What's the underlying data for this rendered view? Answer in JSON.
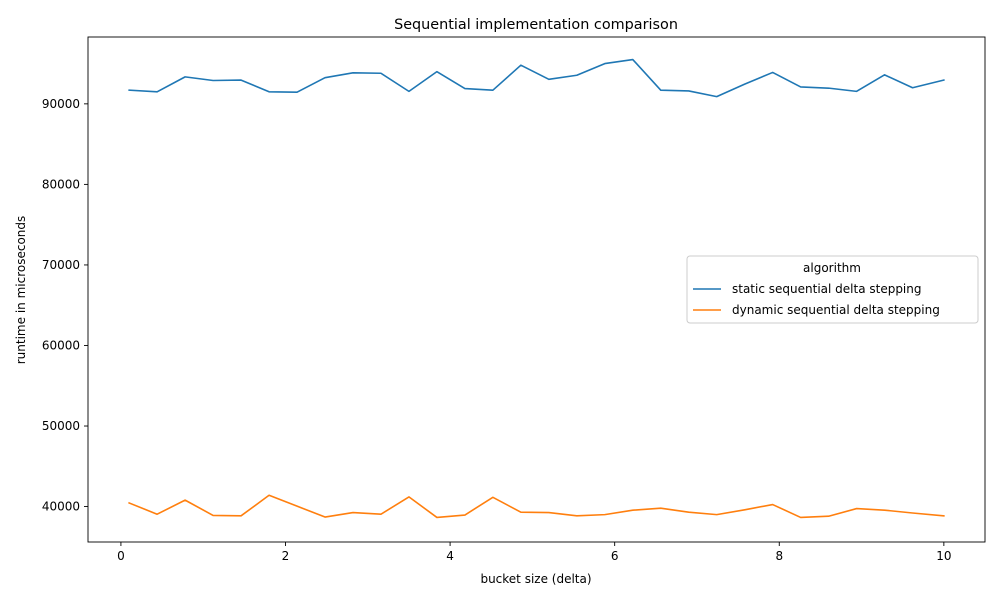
{
  "chart_data": {
    "type": "line",
    "title": "Sequential implementation comparison",
    "xlabel": "bucket size (delta)",
    "ylabel": "runtime in microseconds",
    "xlim": [
      -0.4,
      10.5
    ],
    "ylim": [
      35600,
      98300
    ],
    "x_ticks": [
      0,
      2,
      4,
      6,
      8,
      10
    ],
    "y_ticks": [
      40000,
      50000,
      60000,
      70000,
      80000,
      90000
    ],
    "grid": false,
    "legend": {
      "title": "algorithm",
      "placement": "center-right"
    },
    "x": [
      0.1,
      0.44,
      0.78,
      1.12,
      1.46,
      1.8,
      2.14,
      2.48,
      2.82,
      3.16,
      3.5,
      3.84,
      4.18,
      4.52,
      4.86,
      5.2,
      5.54,
      5.88,
      6.22,
      6.56,
      6.9,
      7.24,
      7.58,
      7.92,
      8.26,
      8.6,
      8.94,
      9.28,
      9.62,
      10.0
    ],
    "series": [
      {
        "name": "static sequential delta stepping",
        "color": "#1f77b4",
        "values": [
          91700,
          91500,
          93350,
          92900,
          92950,
          91500,
          91450,
          93250,
          93850,
          93800,
          91550,
          94000,
          91900,
          91700,
          94800,
          93050,
          93550,
          95000,
          95500,
          91700,
          91600,
          90900,
          92450,
          93900,
          92100,
          91950,
          91550,
          93600,
          92000,
          92950
        ]
      },
      {
        "name": "dynamic sequential delta stepping",
        "color": "#ff7f0e",
        "values": [
          40450,
          39050,
          40800,
          38900,
          38850,
          41400,
          40050,
          38700,
          39250,
          39050,
          41200,
          38650,
          38950,
          41150,
          39300,
          39250,
          38850,
          39000,
          39550,
          39800,
          39300,
          39000,
          39600,
          40250,
          38650,
          38800,
          39750,
          39550,
          39200,
          38850
        ]
      }
    ]
  }
}
